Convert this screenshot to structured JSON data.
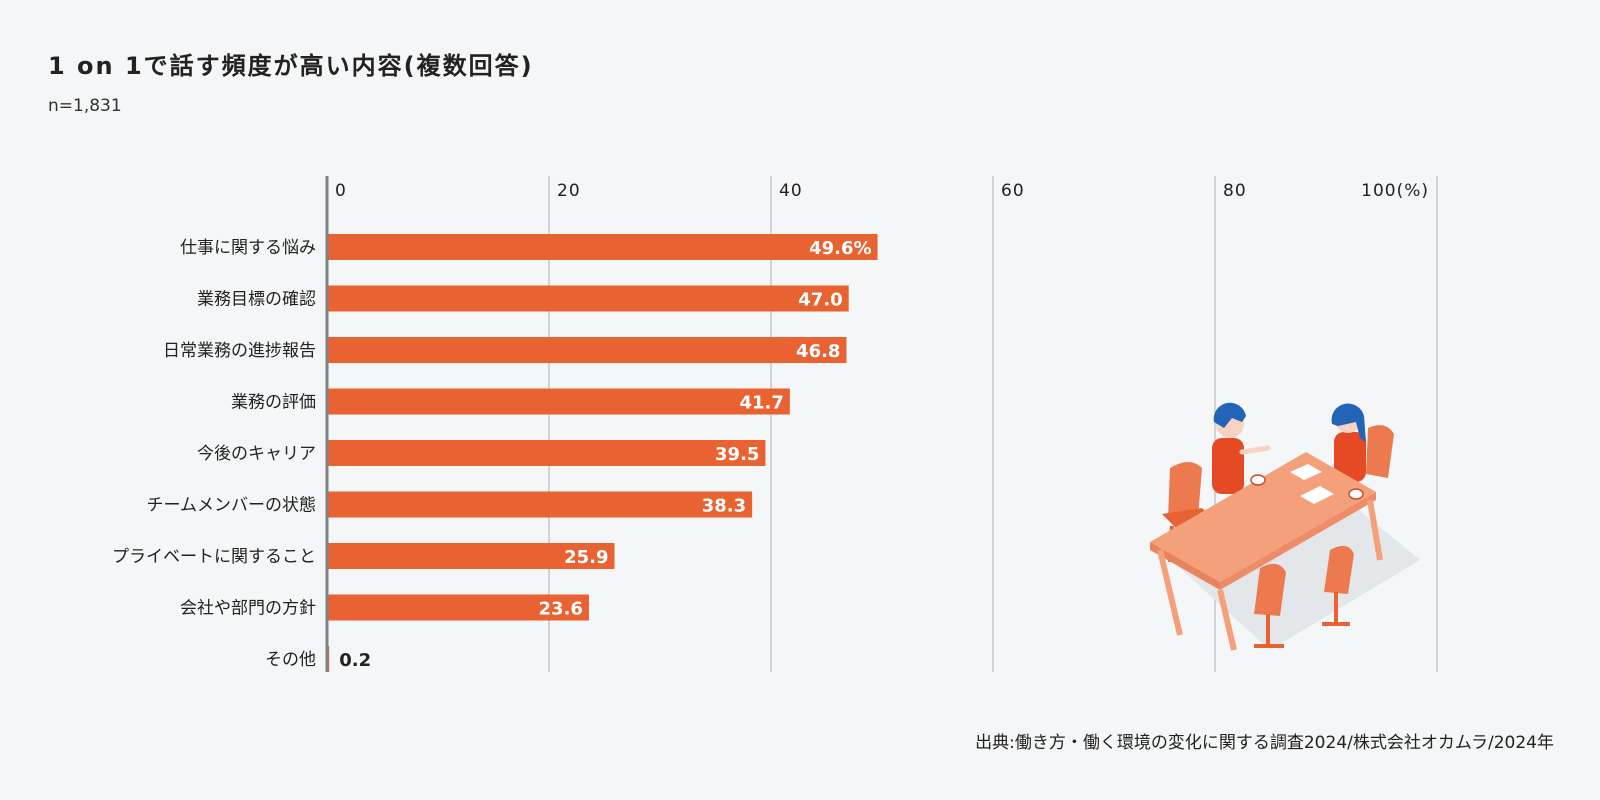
{
  "header": {
    "title": "1 on 1で話す頻度が高い内容(複数回答)",
    "sample_size": "n=1,831"
  },
  "footer": {
    "source": "出典:働き方・働く環境の変化に関する調査2024/株式会社オカムラ/2024年"
  },
  "colors": {
    "bar": "#e86331",
    "grid": "#b7bcbf",
    "axis": "#7d8387",
    "bar_label": "#ffffff",
    "outside_label": "#222222"
  },
  "chart_data": {
    "type": "bar",
    "orientation": "horizontal",
    "title": "1 on 1で話す頻度が高い内容(複数回答)",
    "xlabel": "",
    "ylabel": "",
    "unit": "%",
    "xlim": [
      0,
      100
    ],
    "ticks": [
      0,
      20,
      40,
      60,
      80,
      100
    ],
    "tick_labels": [
      "0",
      "20",
      "40",
      "60",
      "80",
      "100(%)"
    ],
    "categories": [
      "仕事に関する悩み",
      "業務目標の確認",
      "日常業務の進捗報告",
      "業務の評価",
      "今後のキャリア",
      "チームメンバーの状態",
      "プライベートに関すること",
      "会社や部門の方針",
      "その他"
    ],
    "values": [
      49.6,
      47.0,
      46.8,
      41.7,
      39.5,
      38.3,
      25.9,
      23.6,
      0.2
    ],
    "value_labels": [
      "49.6%",
      "47.0",
      "46.8",
      "41.7",
      "39.5",
      "38.3",
      "25.9",
      "23.6",
      "0.2"
    ]
  }
}
